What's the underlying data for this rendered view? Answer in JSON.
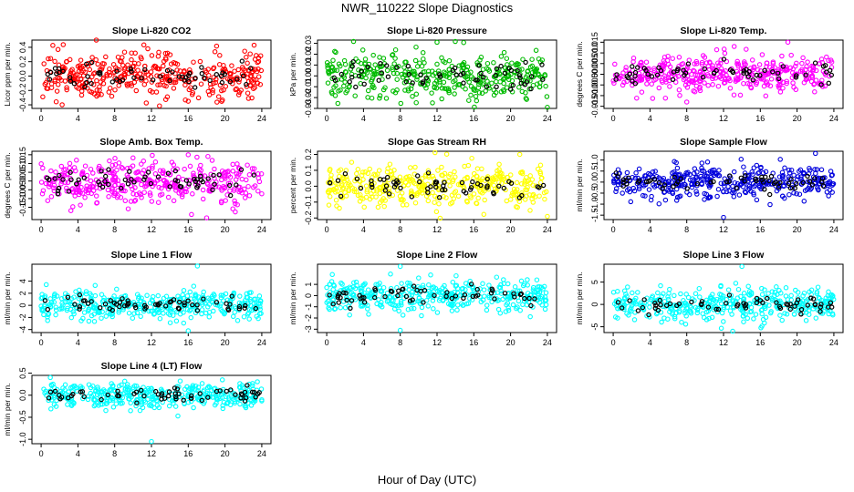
{
  "title": "NWR_110222  Slope Diagnostics",
  "xlabel": "Hour of Day (UTC)",
  "chart_data": [
    {
      "type": "scatter",
      "title": "Slope Li-820 CO2",
      "ylabel": "Licor ppm per min.",
      "color": "#ff0000",
      "xlim": [
        -1,
        25
      ],
      "ylim": [
        -0.45,
        0.5
      ],
      "xticks": [
        0,
        4,
        8,
        12,
        16,
        20,
        24
      ],
      "yticks": [
        -0.4,
        -0.2,
        0.0,
        0.2,
        0.4
      ],
      "ytick_labels": [
        "-0.4",
        "-0.2",
        "0.0",
        "0.2",
        "0.4"
      ],
      "spread": 0.16,
      "hi_x": 6,
      "hi_y": 0.5,
      "lo_x": 16,
      "lo_y": -0.35
    },
    {
      "type": "scatter",
      "title": "Slope Li-820 Pressure",
      "ylabel": "kPa per min.",
      "color": "#00bb00",
      "xlim": [
        -1,
        25
      ],
      "ylim": [
        -0.03,
        0.033
      ],
      "xticks": [
        0,
        4,
        8,
        12,
        16,
        20,
        24
      ],
      "yticks": [
        -0.03,
        -0.02,
        -0.01,
        0.0,
        0.01,
        0.02,
        0.03
      ],
      "ytick_labels": [
        "-0.03",
        "-0.02",
        "-0.01",
        "0.00",
        "0.01",
        "0.02",
        "0.03"
      ],
      "spread": 0.011,
      "hi_x": 12,
      "hi_y": 0.031,
      "lo_x": 24,
      "lo_y": -0.029
    },
    {
      "type": "scatter",
      "title": "Slope Li-820 Temp.",
      "ylabel": "degrees C per min.",
      "color": "#ff00ff",
      "xlim": [
        -1,
        25
      ],
      "ylim": [
        -0.016,
        0.016
      ],
      "xticks": [
        0,
        4,
        8,
        12,
        16,
        20,
        24
      ],
      "yticks": [
        -0.015,
        -0.01,
        -0.005,
        0.0,
        0.005,
        0.01,
        0.015
      ],
      "ytick_labels": [
        "-0.015",
        "-0.010",
        "-0.005",
        "0.000",
        "0.005",
        "0.010",
        "0.015"
      ],
      "spread": 0.0045,
      "hi_x": 19,
      "hi_y": 0.015,
      "lo_x": 8,
      "lo_y": -0.013
    },
    {
      "type": "scatter",
      "title": "Slope Amb. Box Temp.",
      "ylabel": "degrees C per min.",
      "color": "#ff00ff",
      "xlim": [
        -1,
        25
      ],
      "ylim": [
        -0.22,
        0.17
      ],
      "xticks": [
        0,
        4,
        8,
        12,
        16,
        20,
        24
      ],
      "yticks": [
        -0.15,
        -0.1,
        -0.05,
        0.0,
        0.05,
        0.1,
        0.15
      ],
      "ytick_labels": [
        "-0.15",
        "-0.10",
        "-0.05",
        "0.00",
        "0.05",
        "0.10",
        "0.15"
      ],
      "spread": 0.06,
      "hi_x": 16,
      "hi_y": 0.15,
      "lo_x": 18,
      "lo_y": -0.21
    },
    {
      "type": "scatter",
      "title": "Slope Gas Stream RH",
      "ylabel": "percent per min.",
      "color": "#ffff00",
      "xlim": [
        -1,
        25
      ],
      "ylim": [
        -0.21,
        0.22
      ],
      "xticks": [
        0,
        4,
        8,
        12,
        16,
        20,
        24
      ],
      "yticks": [
        -0.2,
        -0.1,
        0.0,
        0.1,
        0.2
      ],
      "ytick_labels": [
        "-0.2",
        "-0.1",
        "0.0",
        "0.1",
        "0.2"
      ],
      "spread": 0.07,
      "hi_x": 21,
      "hi_y": 0.2,
      "lo_x": 24,
      "lo_y": -0.19
    },
    {
      "type": "scatter",
      "title": "Slope Sample Flow",
      "ylabel": "ml/min per min.",
      "color": "#0000dd",
      "xlim": [
        -1,
        25
      ],
      "ylim": [
        -1.7,
        1.4
      ],
      "xticks": [
        0,
        4,
        8,
        12,
        16,
        20,
        24
      ],
      "yticks": [
        -1.5,
        -1.0,
        -0.5,
        0.0,
        0.5,
        1.0
      ],
      "ytick_labels": [
        "-1.5",
        "-1.0",
        "-0.5",
        "0.0",
        "0.5",
        "1.0"
      ],
      "spread": 0.35,
      "hi_x": 22,
      "hi_y": 1.3,
      "lo_x": 12,
      "lo_y": -1.6
    },
    {
      "type": "scatter",
      "title": "Slope Line 1 Flow",
      "ylabel": "ml/min per min.",
      "color": "#00ffff",
      "xlim": [
        -1,
        25
      ],
      "ylim": [
        -4.5,
        6.8
      ],
      "xticks": [
        0,
        4,
        8,
        12,
        16,
        20,
        24
      ],
      "yticks": [
        -4,
        -2,
        0,
        2,
        4
      ],
      "ytick_labels": [
        "-4",
        "-2",
        "0",
        "2",
        "4"
      ],
      "spread": 1.2,
      "hi_x": 17,
      "hi_y": 6.5,
      "lo_x": 16,
      "lo_y": -4.2
    },
    {
      "type": "scatter",
      "title": "Slope Line 2 Flow",
      "ylabel": "ml/min per min.",
      "color": "#00ffff",
      "xlim": [
        -1,
        25
      ],
      "ylim": [
        -3.3,
        2.8
      ],
      "xticks": [
        0,
        4,
        8,
        12,
        16,
        20,
        24
      ],
      "yticks": [
        -3,
        -2,
        -1,
        0,
        1
      ],
      "ytick_labels": [
        "-3",
        "-2",
        "-1",
        "0",
        "1"
      ],
      "spread": 0.7,
      "hi_x": 8,
      "hi_y": 2.6,
      "lo_x": 8,
      "lo_y": -3.1
    },
    {
      "type": "scatter",
      "title": "Slope Line 3 Flow",
      "ylabel": "ml/min per min.",
      "color": "#00ffff",
      "xlim": [
        -1,
        25
      ],
      "ylim": [
        -6.3,
        9.0
      ],
      "xticks": [
        0,
        4,
        8,
        12,
        16,
        20,
        24
      ],
      "yticks": [
        -5,
        0,
        5
      ],
      "ytick_labels": [
        "-5",
        "0",
        "5"
      ],
      "spread": 1.8,
      "hi_x": 14,
      "hi_y": 8.5,
      "lo_x": 13,
      "lo_y": -6.0
    },
    {
      "type": "scatter",
      "title": "Slope Line 4 (LT) Flow",
      "ylabel": "ml/min per min.",
      "color": "#00ffff",
      "xlim": [
        -1,
        25
      ],
      "ylim": [
        -1.1,
        0.45
      ],
      "xticks": [
        0,
        4,
        8,
        12,
        16,
        20,
        24
      ],
      "yticks": [
        -1.0,
        -0.5,
        0.0,
        0.5
      ],
      "ytick_labels": [
        "-1.0",
        "-0.5",
        "0.0",
        "0.5"
      ],
      "spread": 0.14,
      "hi_x": 1,
      "hi_y": 0.4,
      "lo_x": 12,
      "lo_y": -1.05
    }
  ]
}
